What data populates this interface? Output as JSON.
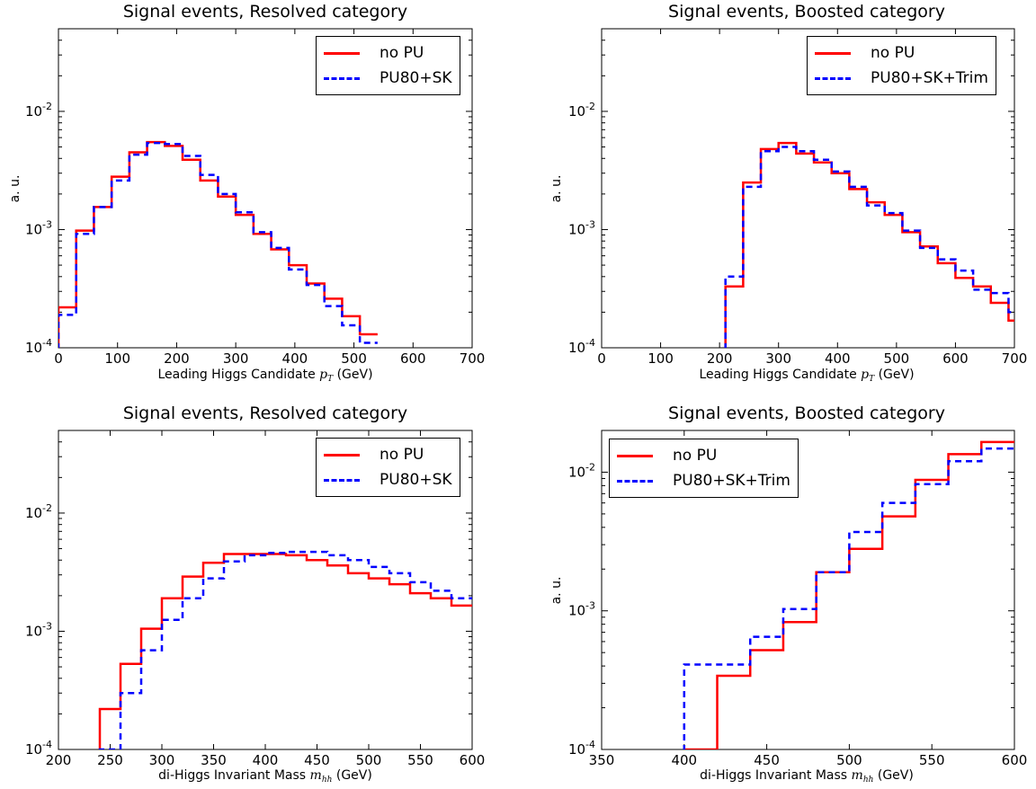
{
  "chart_data": [
    {
      "type": "line",
      "title": "Signal events, Resolved category",
      "xlabel_text": "Leading Higgs Candidate",
      "xlabel_var": "p",
      "xlabel_sub": "T",
      "xlabel_unit": "(GeV)",
      "ylabel": "a. u.",
      "xlim": [
        0,
        700
      ],
      "ylim": [
        0.0001,
        0.05
      ],
      "yscale": "log",
      "xticks": [
        0,
        100,
        200,
        300,
        400,
        500,
        600,
        700
      ],
      "legend_position": "top-right",
      "bin_edges": [
        0,
        30,
        60,
        90,
        120,
        150,
        180,
        210,
        240,
        270,
        300,
        330,
        360,
        390,
        420,
        450,
        480,
        510,
        540
      ],
      "series": [
        {
          "name": "no PU",
          "color": "#ff0000",
          "style": "solid",
          "values": [
            0.00022,
            0.00098,
            0.00155,
            0.0028,
            0.0045,
            0.0055,
            0.0051,
            0.0039,
            0.0026,
            0.0019,
            0.00133,
            0.00092,
            0.00068,
            0.0005,
            0.00035,
            0.00026,
            0.000185,
            0.00013
          ]
        },
        {
          "name": "PU80+SK",
          "color": "#0000ff",
          "style": "dashed",
          "values": [
            0.00019,
            0.00092,
            0.00155,
            0.0026,
            0.0043,
            0.0054,
            0.0053,
            0.0042,
            0.0029,
            0.002,
            0.0014,
            0.00095,
            0.0007,
            0.00046,
            0.00034,
            0.000225,
            0.000155,
            0.00011
          ]
        }
      ]
    },
    {
      "type": "line",
      "title": "Signal events, Boosted category",
      "xlabel_text": "Leading Higgs Candidate",
      "xlabel_var": "p",
      "xlabel_sub": "T",
      "xlabel_unit": "(GeV)",
      "ylabel": "a. u.",
      "xlim": [
        0,
        700
      ],
      "ylim": [
        0.0001,
        0.05
      ],
      "yscale": "log",
      "xticks": [
        0,
        100,
        200,
        300,
        400,
        500,
        600,
        700
      ],
      "legend_position": "top-right",
      "bin_edges": [
        210,
        240,
        270,
        300,
        330,
        360,
        390,
        420,
        450,
        480,
        510,
        540,
        570,
        600,
        630,
        660,
        690,
        700
      ],
      "series": [
        {
          "name": "no PU",
          "color": "#ff0000",
          "style": "solid",
          "values": [
            0.00033,
            0.0025,
            0.0048,
            0.0054,
            0.0044,
            0.0037,
            0.003,
            0.0022,
            0.0017,
            0.00133,
            0.00095,
            0.00072,
            0.00052,
            0.00039,
            0.00033,
            0.00024,
            0.00017
          ]
        },
        {
          "name": "PU80+SK+Trim",
          "color": "#0000ff",
          "style": "dashed",
          "values": [
            0.0004,
            0.0023,
            0.0046,
            0.005,
            0.0046,
            0.0039,
            0.0031,
            0.0023,
            0.0016,
            0.00138,
            0.00098,
            0.0007,
            0.00056,
            0.00045,
            0.00031,
            0.00029,
            0.0002
          ]
        }
      ]
    },
    {
      "type": "line",
      "title": "Signal events, Resolved category",
      "xlabel_text": "di-Higgs Invariant Mass",
      "xlabel_var": "m",
      "xlabel_sub": "hh",
      "xlabel_unit": "(GeV)",
      "ylabel": "",
      "xlim": [
        200,
        600
      ],
      "ylim": [
        0.0001,
        0.05
      ],
      "yscale": "log",
      "xticks": [
        200,
        250,
        300,
        350,
        400,
        450,
        500,
        550,
        600
      ],
      "legend_position": "top-right",
      "bin_edges": [
        240,
        260,
        280,
        300,
        320,
        340,
        360,
        380,
        400,
        420,
        440,
        460,
        480,
        500,
        520,
        540,
        560,
        580,
        600
      ],
      "series": [
        {
          "name": "no PU",
          "color": "#ff0000",
          "style": "solid",
          "values": [
            0.00022,
            0.00053,
            0.00105,
            0.0019,
            0.0029,
            0.0038,
            0.0045,
            0.0045,
            0.0045,
            0.0044,
            0.004,
            0.0036,
            0.0031,
            0.0028,
            0.0025,
            0.0021,
            0.0019,
            0.00165
          ]
        },
        {
          "name": "PU80+SK",
          "color": "#0000ff",
          "style": "dashed",
          "values": [
            0.0001,
            0.0003,
            0.00069,
            0.00125,
            0.0019,
            0.0028,
            0.0039,
            0.0044,
            0.0046,
            0.0047,
            0.0047,
            0.0044,
            0.004,
            0.0035,
            0.0031,
            0.0026,
            0.0022,
            0.0019
          ]
        }
      ]
    },
    {
      "type": "line",
      "title": "Signal events, Boosted category",
      "xlabel_text": "di-Higgs Invariant Mass",
      "xlabel_var": "m",
      "xlabel_sub": "hh",
      "xlabel_unit": "(GeV)",
      "ylabel": "a. u.",
      "xlim": [
        350,
        600
      ],
      "ylim": [
        0.0001,
        0.02
      ],
      "yscale": "log",
      "xticks": [
        350,
        400,
        450,
        500,
        550,
        600
      ],
      "legend_position": "top-left",
      "bin_edges": [
        400,
        420,
        440,
        460,
        480,
        500,
        520,
        540,
        560,
        580,
        600
      ],
      "series": [
        {
          "name": "no PU",
          "color": "#ff0000",
          "style": "solid",
          "values": [
            0.0001,
            0.00034,
            0.00052,
            0.00083,
            0.0019,
            0.0028,
            0.0048,
            0.0088,
            0.0135,
            0.0165
          ]
        },
        {
          "name": "PU80+SK+Trim",
          "color": "#0000ff",
          "style": "dashed",
          "values": [
            0.00041,
            0.00041,
            0.00065,
            0.00103,
            0.0019,
            0.0037,
            0.006,
            0.0082,
            0.012,
            0.0148
          ]
        }
      ]
    }
  ]
}
